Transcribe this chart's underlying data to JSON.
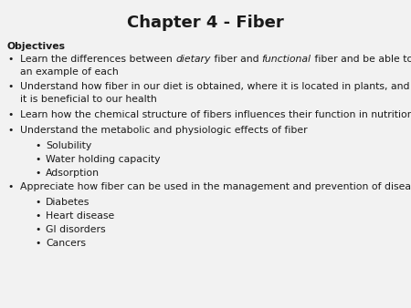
{
  "title": "Chapter 4 - Fiber",
  "background_color": "#f2f2f2",
  "text_color": "#1a1a1a",
  "title_fontsize": 13,
  "body_fontsize": 7.8,
  "objectives_label": "Objectives",
  "items": [
    {
      "parts": [
        {
          "text": "Learn the differences between ",
          "style": "normal"
        },
        {
          "text": "dietary",
          "style": "italic"
        },
        {
          "text": " fiber and ",
          "style": "normal"
        },
        {
          "text": "functional",
          "style": "italic"
        },
        {
          "text": " fiber and be able to give",
          "style": "normal"
        }
      ],
      "line2": "an example of each",
      "level": 0
    },
    {
      "parts": [
        {
          "text": "Understand how fiber in our diet is obtained, where it is located in plants, and why",
          "style": "normal"
        }
      ],
      "line2": "it is beneficial to our health",
      "level": 0
    },
    {
      "parts": [
        {
          "text": "Learn how the chemical structure of fibers influences their function in nutrition",
          "style": "normal"
        }
      ],
      "line2": null,
      "level": 0
    },
    {
      "parts": [
        {
          "text": "Understand the metabolic and physiologic effects of fiber",
          "style": "normal"
        }
      ],
      "line2": null,
      "level": 0
    },
    {
      "parts": [
        {
          "text": "Solubility",
          "style": "normal"
        }
      ],
      "line2": null,
      "level": 1
    },
    {
      "parts": [
        {
          "text": "Water holding capacity",
          "style": "normal"
        }
      ],
      "line2": null,
      "level": 1
    },
    {
      "parts": [
        {
          "text": "Adsorption",
          "style": "normal"
        }
      ],
      "line2": null,
      "level": 1
    },
    {
      "parts": [
        {
          "text": "Appreciate how fiber can be used in the management and prevention of disease",
          "style": "normal"
        }
      ],
      "line2": null,
      "level": 0
    },
    {
      "parts": [
        {
          "text": "Diabetes",
          "style": "normal"
        }
      ],
      "line2": null,
      "level": 1
    },
    {
      "parts": [
        {
          "text": "Heart disease",
          "style": "normal"
        }
      ],
      "line2": null,
      "level": 1
    },
    {
      "parts": [
        {
          "text": "GI disorders",
          "style": "normal"
        }
      ],
      "line2": null,
      "level": 1
    },
    {
      "parts": [
        {
          "text": "Cancers",
          "style": "normal"
        }
      ],
      "line2": null,
      "level": 1
    }
  ]
}
